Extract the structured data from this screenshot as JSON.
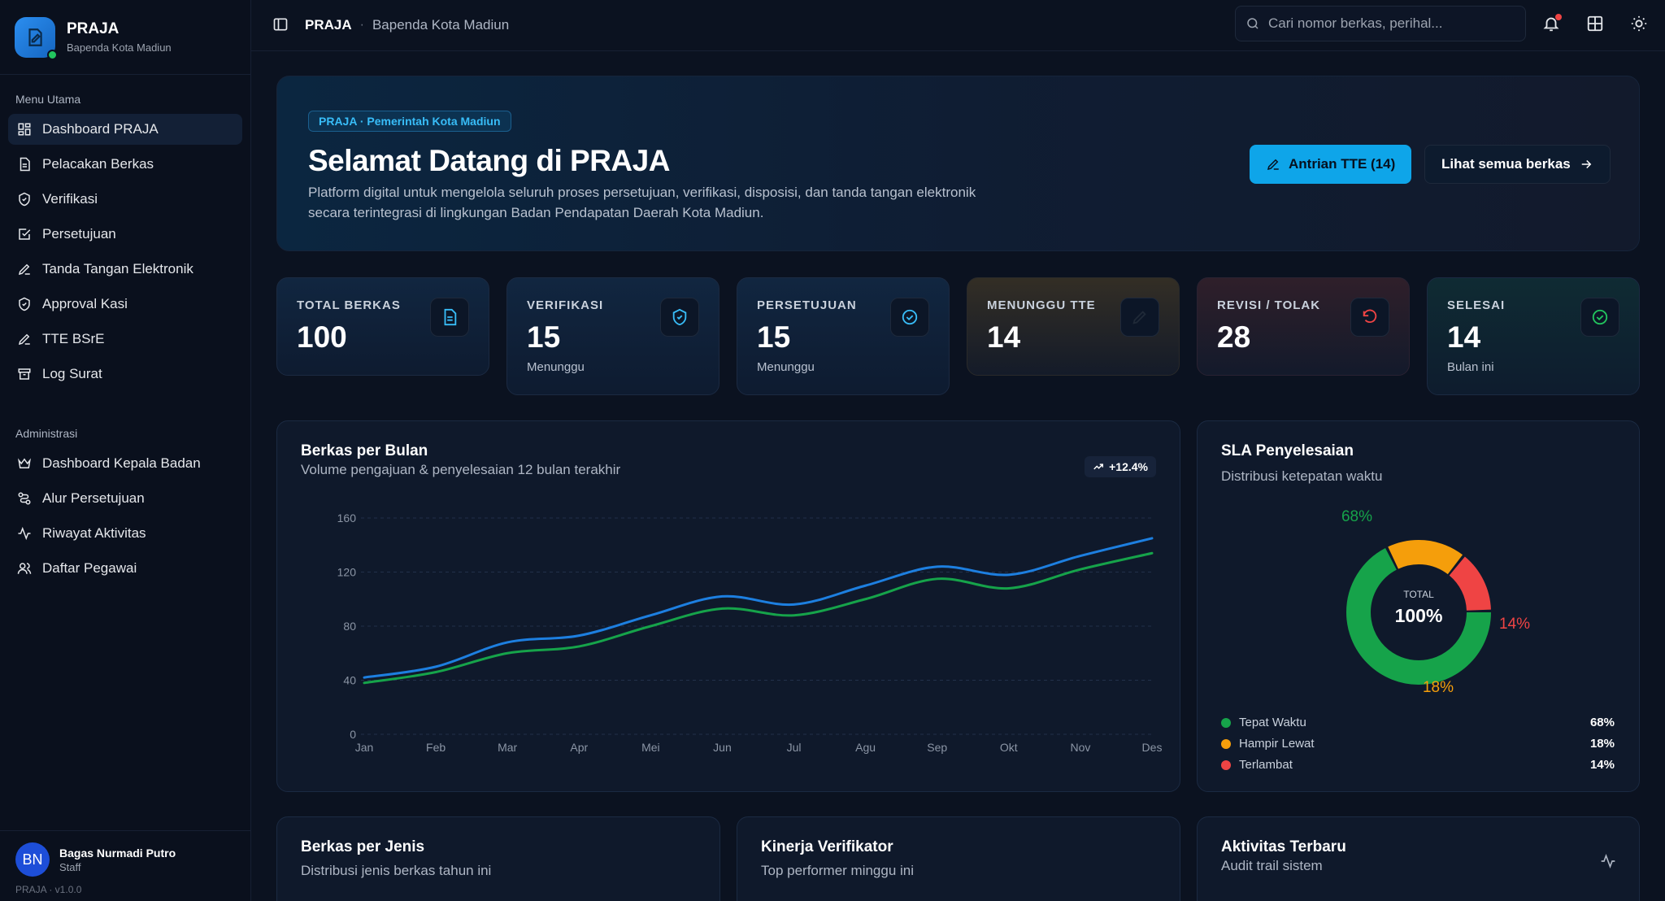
{
  "brand": {
    "title": "PRAJA",
    "subtitle": "Bapenda Kota Madiun"
  },
  "sidebar": {
    "main_heading": "Menu Utama",
    "main_items": [
      {
        "label": "Dashboard PRAJA",
        "icon": "dashboard-icon"
      },
      {
        "label": "Pelacakan Berkas",
        "icon": "document-icon"
      },
      {
        "label": "Verifikasi",
        "icon": "shield-icon"
      },
      {
        "label": "Persetujuan",
        "icon": "checkbox-icon"
      },
      {
        "label": "Tanda Tangan Elektronik",
        "icon": "pen-icon"
      },
      {
        "label": "Approval Kasi",
        "icon": "shield-icon"
      },
      {
        "label": "TTE BSrE",
        "icon": "pen-icon"
      },
      {
        "label": "Log Surat",
        "icon": "archive-icon"
      }
    ],
    "admin_heading": "Administrasi",
    "admin_items": [
      {
        "label": "Dashboard Kepala Badan",
        "icon": "crown-icon"
      },
      {
        "label": "Alur Persetujuan",
        "icon": "workflow-icon"
      },
      {
        "label": "Riwayat Aktivitas",
        "icon": "activity-icon"
      },
      {
        "label": "Daftar Pegawai",
        "icon": "users-icon"
      }
    ]
  },
  "user": {
    "initials": "BN",
    "name": "Bagas Nurmadi Putro",
    "role": "Staff"
  },
  "version": "PRAJA · v1.0.0",
  "topbar": {
    "title": "PRAJA",
    "separator": "·",
    "subtitle": "Bapenda Kota Madiun",
    "search_placeholder": "Cari nomor berkas, perihal..."
  },
  "hero": {
    "tag": "PRAJA · Pemerintah Kota Madiun",
    "title": "Selamat Datang di PRAJA",
    "description": "Platform digital untuk mengelola seluruh proses persetujuan, verifikasi, disposisi, dan tanda tangan elektronik secara terintegrasi di lingkungan Badan Pendapatan Daerah Kota Madiun.",
    "primary_button": "Antrian TTE (14)",
    "secondary_button": "Lihat semua berkas"
  },
  "stats": [
    {
      "label": "TOTAL BERKAS",
      "value": "100",
      "sub": "",
      "icon": "document-icon",
      "color": "#38bdf8",
      "variant": ""
    },
    {
      "label": "VERIFIKASI",
      "value": "15",
      "sub": "Menunggu",
      "icon": "shield-icon",
      "color": "#38bdf8",
      "variant": ""
    },
    {
      "label": "PERSETUJUAN",
      "value": "15",
      "sub": "Menunggu",
      "icon": "check-circle-icon",
      "color": "#38bdf8",
      "variant": ""
    },
    {
      "label": "MENUNGGU TTE",
      "value": "14",
      "sub": "",
      "icon": "pen-icon",
      "color": "#1f2937",
      "variant": "warn"
    },
    {
      "label": "REVISI / TOLAK",
      "value": "28",
      "sub": "",
      "icon": "rotate-icon",
      "color": "#ef4444",
      "variant": "danger"
    },
    {
      "label": "SELESAI",
      "value": "14",
      "sub": "Bulan ini",
      "icon": "check-circle-icon",
      "color": "#22c55e",
      "variant": "ok"
    }
  ],
  "monthly_panel": {
    "title": "Berkas per Bulan",
    "subtitle": "Volume pengajuan & penyelesaian 12 bulan terakhir",
    "trend": "+12.4%"
  },
  "chart_data": {
    "type": "line",
    "categories": [
      "Jan",
      "Feb",
      "Mar",
      "Apr",
      "Mei",
      "Jun",
      "Jul",
      "Agu",
      "Sep",
      "Okt",
      "Nov",
      "Des"
    ],
    "series": [
      {
        "color": "#1d7fe0",
        "values": [
          42,
          50,
          68,
          73,
          88,
          102,
          96,
          110,
          124,
          118,
          132,
          145
        ]
      },
      {
        "color": "#16a34a",
        "values": [
          38,
          46,
          60,
          65,
          80,
          93,
          88,
          100,
          115,
          108,
          122,
          134
        ]
      }
    ],
    "yticks": [
      0,
      40,
      80,
      120,
      160
    ],
    "ylim": [
      0,
      160
    ],
    "grid": true
  },
  "sla_panel": {
    "title": "SLA Penyelesaian",
    "subtitle": "Distribusi ketepatan waktu",
    "center_label": "TOTAL",
    "center_value": "100%",
    "slices": [
      {
        "label": "Tepat Waktu",
        "value": 68,
        "display": "68%",
        "color": "#16a34a"
      },
      {
        "label": "Hampir Lewat",
        "value": 18,
        "display": "18%",
        "color": "#f59e0b"
      },
      {
        "label": "Terlambat",
        "value": 14,
        "display": "14%",
        "color": "#ef4444"
      }
    ]
  },
  "bottom_panels": [
    {
      "title": "Berkas per Jenis",
      "subtitle": "Distribusi jenis berkas tahun ini"
    },
    {
      "title": "Kinerja Verifikator",
      "subtitle": "Top performer minggu ini"
    },
    {
      "title": "Aktivitas Terbaru",
      "subtitle": "Audit trail sistem"
    }
  ]
}
